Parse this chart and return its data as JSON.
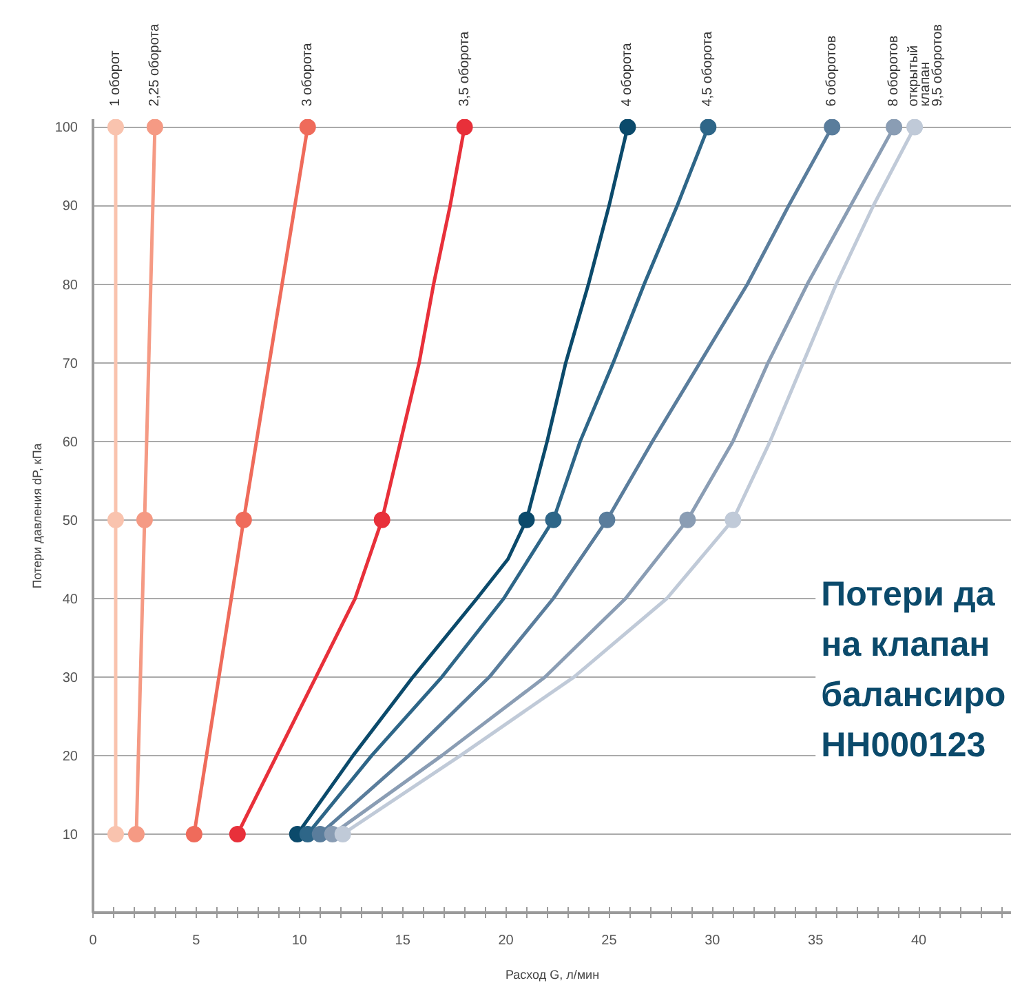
{
  "chart_data": {
    "type": "line",
    "xlabel": "Расход G, л/мин",
    "ylabel": "Потери давления dP, кПа",
    "annotations": [
      "Потери да\nна клапан\nбалансиро\nHH000123"
    ],
    "xlim": [
      0,
      44.5
    ],
    "ylim": [
      0,
      101
    ],
    "xticks": [
      0,
      5,
      10,
      15,
      20,
      25,
      30,
      35,
      40
    ],
    "yticks": [
      10,
      20,
      30,
      40,
      50,
      60,
      70,
      80,
      90,
      100
    ],
    "grid": "y",
    "marker": "circle",
    "line_style": "solid",
    "series": [
      {
        "name": "1 оборот",
        "color": "#f9c3ae",
        "marker": "none",
        "x": [
          1.1,
          1.1,
          1.1
        ],
        "values": [
          10,
          50,
          100
        ]
      },
      {
        "type": "scatter",
        "color": "#f9c3ae",
        "x": [
          1.1,
          1.1,
          1.1
        ],
        "values": [
          10,
          50,
          100
        ]
      },
      {
        "name": "2,25 оборота",
        "color": "#f59a84",
        "marker": "none",
        "x": [
          2.1,
          2.5,
          3.0
        ],
        "values": [
          10,
          50,
          100
        ]
      },
      {
        "type": "scatter",
        "color": "#f59a84",
        "x": [
          2.1,
          2.5,
          3.0
        ],
        "values": [
          10,
          50,
          100
        ]
      },
      {
        "name": "3 оборота",
        "color": "#ef6b5b",
        "marker": "none",
        "x": [
          4.9,
          7.3,
          10.4
        ],
        "values": [
          10,
          50,
          100
        ]
      },
      {
        "type": "scatter",
        "color": "#ef6b5b",
        "x": [
          4.9,
          7.3,
          10.4
        ],
        "values": [
          10,
          50,
          100
        ]
      },
      {
        "name": "3,5 оборота",
        "color": "#e8303a",
        "marker": "none",
        "x": [
          7.0,
          8.9,
          10.8,
          12.7,
          14.0,
          14.9,
          15.8,
          16.5,
          17.3,
          18.0
        ],
        "values": [
          10,
          20,
          30,
          40,
          50,
          60,
          70,
          80,
          90,
          100
        ]
      },
      {
        "type": "scatter",
        "color": "#e8303a",
        "x": [
          7.0,
          14.0,
          18.0
        ],
        "values": [
          10,
          50,
          100
        ]
      },
      {
        "name": "4 оборота",
        "color": "#0b4a6b",
        "marker": "none",
        "x": [
          9.9,
          12.6,
          15.5,
          18.6,
          20.1,
          21.0,
          22.0,
          22.9,
          24.0,
          25.0,
          25.9
        ],
        "values": [
          10,
          20,
          30,
          40,
          45,
          50,
          60,
          70,
          80,
          90,
          100
        ]
      },
      {
        "type": "scatter",
        "color": "#0b4a6b",
        "x": [
          9.9,
          21.0,
          25.9
        ],
        "values": [
          10,
          50,
          100
        ]
      },
      {
        "name": "4,5 оборота",
        "color": "#2e6688",
        "marker": "none",
        "x": [
          10.4,
          13.5,
          16.9,
          19.9,
          22.3,
          23.6,
          25.2,
          26.7,
          28.3,
          29.8
        ],
        "values": [
          10,
          20,
          30,
          40,
          50,
          60,
          70,
          80,
          90,
          100
        ]
      },
      {
        "type": "scatter",
        "color": "#2e6688",
        "x": [
          10.4,
          22.3,
          29.8
        ],
        "values": [
          10,
          50,
          100
        ]
      },
      {
        "name": "6 оборотов",
        "color": "#5a7d9c",
        "marker": "none",
        "x": [
          11.0,
          15.3,
          19.2,
          22.3,
          24.9,
          27.1,
          29.4,
          31.7,
          33.7,
          35.8
        ],
        "values": [
          10,
          20,
          30,
          40,
          50,
          60,
          70,
          80,
          90,
          100
        ]
      },
      {
        "type": "scatter",
        "color": "#5a7d9c",
        "x": [
          11.0,
          24.9,
          35.8
        ],
        "values": [
          10,
          50,
          100
        ]
      },
      {
        "name": "8 оборотов",
        "color": "#8a9db4",
        "marker": "none",
        "x": [
          11.6,
          16.9,
          21.9,
          25.8,
          28.8,
          31.0,
          32.7,
          34.6,
          36.7,
          38.8
        ],
        "values": [
          10,
          20,
          30,
          40,
          50,
          60,
          70,
          80,
          90,
          100
        ]
      },
      {
        "type": "scatter",
        "color": "#8a9db4",
        "x": [
          11.6,
          28.8,
          38.8
        ],
        "values": [
          10,
          50,
          100
        ]
      },
      {
        "name": "открытый\nклапан\n9,5 оборотов",
        "color": "#c0cad8",
        "marker": "none",
        "x": [
          12.1,
          17.8,
          23.3,
          27.8,
          31.0,
          32.8,
          34.4,
          36.0,
          37.8,
          39.8
        ],
        "values": [
          10,
          20,
          30,
          40,
          50,
          60,
          70,
          80,
          90,
          100
        ]
      },
      {
        "type": "scatter",
        "color": "#c0cad8",
        "x": [
          12.1,
          31.0,
          39.8
        ],
        "values": [
          10,
          50,
          100
        ]
      }
    ]
  }
}
